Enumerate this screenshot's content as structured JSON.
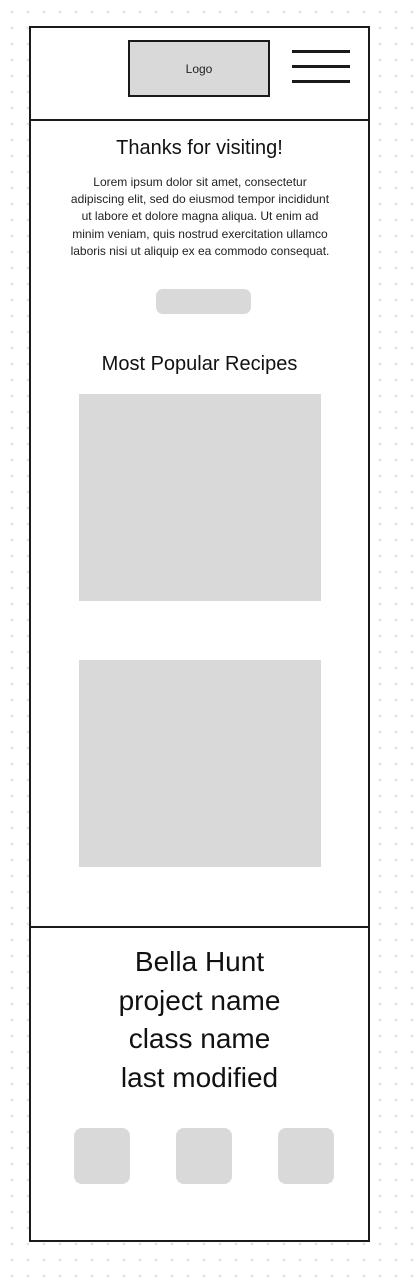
{
  "header": {
    "logo_label": "Logo",
    "menu_icon": "hamburger-menu-icon"
  },
  "welcome": {
    "title": "Thanks for visiting!",
    "body": "Lorem ipsum dolor sit amet, consectetur adipiscing elit, sed do eiusmod tempor incididunt ut labore et dolore magna aliqua. Ut enim ad minim veniam, quis nostrud exercitation ullamco laboris nisi ut aliquip ex ea commodo consequat."
  },
  "recipes": {
    "title": "Most Popular Recipes"
  },
  "footer": {
    "lines": [
      "Bella Hunt",
      "project name",
      "class name",
      "last modified"
    ]
  },
  "colors": {
    "placeholder": "#d9d9d9",
    "border": "#1a1a1a",
    "background": "#ffffff"
  }
}
